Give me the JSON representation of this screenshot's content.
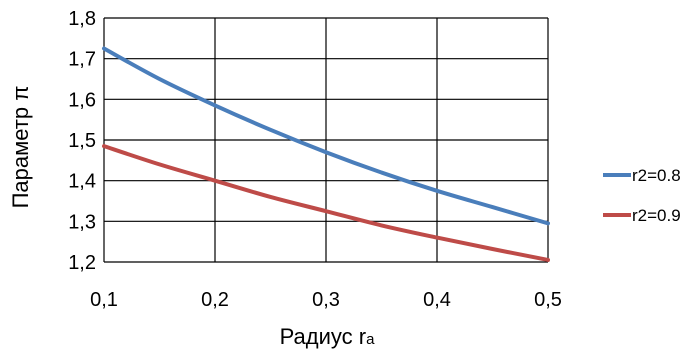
{
  "chart_data": {
    "type": "line",
    "xlabel": "Радиус r",
    "xlabel_subscript": "a",
    "ylabel": "Параметр π",
    "xlim": [
      0.1,
      0.5
    ],
    "ylim": [
      1.2,
      1.8
    ],
    "x_ticks": [
      0.1,
      0.2,
      0.3,
      0.4,
      0.5
    ],
    "y_ticks": [
      1.2,
      1.3,
      1.4,
      1.5,
      1.6,
      1.7,
      1.8
    ],
    "x_tick_labels": [
      "0,1",
      "0,2",
      "0,3",
      "0,4",
      "0,5"
    ],
    "y_tick_labels": [
      "1,2",
      "1,3",
      "1,4",
      "1,5",
      "1,6",
      "1,7",
      "1,8"
    ],
    "grid": true,
    "legend_position": "right",
    "series": [
      {
        "name": "r2=0.8",
        "color": "#4a7ebb",
        "x": [
          0.1,
          0.15,
          0.2,
          0.25,
          0.3,
          0.35,
          0.4,
          0.45,
          0.5
        ],
        "y": [
          1.725,
          1.65,
          1.585,
          1.525,
          1.47,
          1.42,
          1.375,
          1.335,
          1.295
        ]
      },
      {
        "name": "r2=0.9",
        "color": "#be4b48",
        "x": [
          0.1,
          0.15,
          0.2,
          0.25,
          0.3,
          0.35,
          0.4,
          0.45,
          0.5
        ],
        "y": [
          1.485,
          1.44,
          1.4,
          1.36,
          1.325,
          1.29,
          1.26,
          1.232,
          1.205
        ]
      }
    ]
  }
}
